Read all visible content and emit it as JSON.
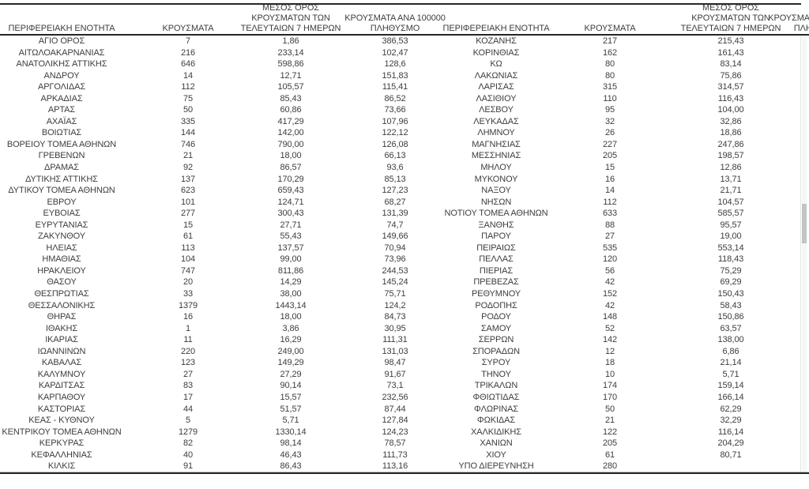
{
  "columns": {
    "region": "ΠΕΡΙΦΕΡΕΙΑΚΗ ΕΝΟΤΗΤΑ",
    "cases": "ΚΡΟΥΣΜΑΤΑ",
    "avg7_line1": "ΜΕΣΟΣ ΟΡΟΣ",
    "avg7_line2": "ΚΡΟΥΣΜΑΤΩΝ ΤΩΝ",
    "avg7_line3": "ΤΕΛΕΥΤΑΙΩΝ 7 ΗΜΕΡΩΝ",
    "per100k_line1": "ΚΡΟΥΣΜΑΤΑ ΑΝΑ 100000",
    "per100k_line2": "ΠΛΗΘΥΣΜΟ"
  },
  "colors": {
    "text": "#3d3d3d",
    "border": "#262626",
    "scrollbar_thumb": "#c4c4c4"
  },
  "left_table": {
    "rows": [
      {
        "region": "ΑΓΙΟ ΟΡΟΣ",
        "cases": "7",
        "avg7": "1,86",
        "per100k": "386,53"
      },
      {
        "region": "ΑΙΤΩΛΟΑΚΑΡΝΑΝΙΑΣ",
        "cases": "216",
        "avg7": "233,14",
        "per100k": "102,47"
      },
      {
        "region": "ΑΝΑΤΟΛΙΚΗΣ ΑΤΤΙΚΗΣ",
        "cases": "646",
        "avg7": "598,86",
        "per100k": "128,6"
      },
      {
        "region": "ΑΝΔΡΟΥ",
        "cases": "14",
        "avg7": "12,71",
        "per100k": "151,83"
      },
      {
        "region": "ΑΡΓΟΛΙΔΑΣ",
        "cases": "112",
        "avg7": "105,57",
        "per100k": "115,41"
      },
      {
        "region": "ΑΡΚΑΔΙΑΣ",
        "cases": "75",
        "avg7": "85,43",
        "per100k": "86,52"
      },
      {
        "region": "ΑΡΤΑΣ",
        "cases": "50",
        "avg7": "60,86",
        "per100k": "73,66"
      },
      {
        "region": "ΑΧΑΪΑΣ",
        "cases": "335",
        "avg7": "417,29",
        "per100k": "107,96"
      },
      {
        "region": "ΒΟΙΩΤΙΑΣ",
        "cases": "144",
        "avg7": "142,00",
        "per100k": "122,12"
      },
      {
        "region": "ΒΟΡΕΙΟΥ ΤΟΜΕΑ ΑΘΗΝΩΝ",
        "cases": "746",
        "avg7": "790,00",
        "per100k": "126,08"
      },
      {
        "region": "ΓΡΕΒΕΝΩΝ",
        "cases": "21",
        "avg7": "18,00",
        "per100k": "66,13"
      },
      {
        "region": "ΔΡΑΜΑΣ",
        "cases": "92",
        "avg7": "86,57",
        "per100k": "93,6"
      },
      {
        "region": "ΔΥΤΙΚΗΣ ΑΤΤΙΚΗΣ",
        "cases": "137",
        "avg7": "170,29",
        "per100k": "85,13"
      },
      {
        "region": "ΔΥΤΙΚΟΥ ΤΟΜΕΑ ΑΘΗΝΩΝ",
        "cases": "623",
        "avg7": "659,43",
        "per100k": "127,23"
      },
      {
        "region": "ΕΒΡΟΥ",
        "cases": "101",
        "avg7": "124,71",
        "per100k": "68,27"
      },
      {
        "region": "ΕΥΒΟΙΑΣ",
        "cases": "277",
        "avg7": "300,43",
        "per100k": "131,39"
      },
      {
        "region": "ΕΥΡΥΤΑΝΙΑΣ",
        "cases": "15",
        "avg7": "27,71",
        "per100k": "74,7"
      },
      {
        "region": "ΖΑΚΥΝΘΟΥ",
        "cases": "61",
        "avg7": "55,43",
        "per100k": "149,66"
      },
      {
        "region": "ΗΛΕΙΑΣ",
        "cases": "113",
        "avg7": "137,57",
        "per100k": "70,94"
      },
      {
        "region": "ΗΜΑΘΙΑΣ",
        "cases": "104",
        "avg7": "99,00",
        "per100k": "73,96"
      },
      {
        "region": "ΗΡΑΚΛΕΙΟΥ",
        "cases": "747",
        "avg7": "811,86",
        "per100k": "244,53"
      },
      {
        "region": "ΘΑΣΟΥ",
        "cases": "20",
        "avg7": "14,29",
        "per100k": "145,24"
      },
      {
        "region": "ΘΕΣΠΡΩΤΙΑΣ",
        "cases": "33",
        "avg7": "38,00",
        "per100k": "75,71"
      },
      {
        "region": "ΘΕΣΣΑΛΟΝΙΚΗΣ",
        "cases": "1379",
        "avg7": "1443,14",
        "per100k": "124,2"
      },
      {
        "region": "ΘΗΡΑΣ",
        "cases": "16",
        "avg7": "18,00",
        "per100k": "84,73"
      },
      {
        "region": "ΙΘΑΚΗΣ",
        "cases": "1",
        "avg7": "3,86",
        "per100k": "30,95"
      },
      {
        "region": "ΙΚΑΡΙΑΣ",
        "cases": "11",
        "avg7": "16,29",
        "per100k": "111,31"
      },
      {
        "region": "ΙΩΑΝΝΙΝΩΝ",
        "cases": "220",
        "avg7": "249,00",
        "per100k": "131,03"
      },
      {
        "region": "ΚΑΒΑΛΑΣ",
        "cases": "123",
        "avg7": "149,29",
        "per100k": "98,47"
      },
      {
        "region": "ΚΑΛΥΜΝΟΥ",
        "cases": "27",
        "avg7": "27,29",
        "per100k": "91,67"
      },
      {
        "region": "ΚΑΡΔΙΤΣΑΣ",
        "cases": "83",
        "avg7": "90,14",
        "per100k": "73,1"
      },
      {
        "region": "ΚΑΡΠΑΘΟΥ",
        "cases": "17",
        "avg7": "15,57",
        "per100k": "232,56"
      },
      {
        "region": "ΚΑΣΤΟΡΙΑΣ",
        "cases": "44",
        "avg7": "51,57",
        "per100k": "87,44"
      },
      {
        "region": "ΚΕΑΣ - ΚΥΘΝΟΥ",
        "cases": "5",
        "avg7": "5,71",
        "per100k": "127,84"
      },
      {
        "region": "ΚΕΝΤΡΙΚΟΥ ΤΟΜΕΑ ΑΘΗΝΩΝ",
        "cases": "1279",
        "avg7": "1330,14",
        "per100k": "124,23"
      },
      {
        "region": "ΚΕΡΚΥΡΑΣ",
        "cases": "82",
        "avg7": "98,14",
        "per100k": "78,57"
      },
      {
        "region": "ΚΕΦΑΛΛΗΝΙΑΣ",
        "cases": "40",
        "avg7": "46,43",
        "per100k": "111,73"
      },
      {
        "region": "ΚΙΛΚΙΣ",
        "cases": "91",
        "avg7": "86,43",
        "per100k": "113,16"
      }
    ]
  },
  "right_table": {
    "rows": [
      {
        "region": "ΚΟΖΑΝΗΣ",
        "cases": "217",
        "avg7": "215,43"
      },
      {
        "region": "ΚΟΡΙΝΘΙΑΣ",
        "cases": "162",
        "avg7": "161,43"
      },
      {
        "region": "ΚΩ",
        "cases": "80",
        "avg7": "83,14"
      },
      {
        "region": "ΛΑΚΩΝΙΑΣ",
        "cases": "80",
        "avg7": "75,86"
      },
      {
        "region": "ΛΑΡΙΣΑΣ",
        "cases": "315",
        "avg7": "314,57"
      },
      {
        "region": "ΛΑΣΙΘΙΟΥ",
        "cases": "110",
        "avg7": "116,43"
      },
      {
        "region": "ΛΕΣΒΟΥ",
        "cases": "95",
        "avg7": "104,00"
      },
      {
        "region": "ΛΕΥΚΑΔΑΣ",
        "cases": "32",
        "avg7": "32,86"
      },
      {
        "region": "ΛΗΜΝΟΥ",
        "cases": "26",
        "avg7": "18,86"
      },
      {
        "region": "ΜΑΓΝΗΣΙΑΣ",
        "cases": "227",
        "avg7": "247,86"
      },
      {
        "region": "ΜΕΣΣΗΝΙΑΣ",
        "cases": "205",
        "avg7": "198,57"
      },
      {
        "region": "ΜΗΛΟΥ",
        "cases": "15",
        "avg7": "12,86"
      },
      {
        "region": "ΜΥΚΟΝΟΥ",
        "cases": "16",
        "avg7": "13,71"
      },
      {
        "region": "ΝΑΞΟΥ",
        "cases": "14",
        "avg7": "21,71"
      },
      {
        "region": "ΝΗΣΩΝ",
        "cases": "112",
        "avg7": "104,57"
      },
      {
        "region": "ΝΟΤΙΟΥ ΤΟΜΕΑ ΑΘΗΝΩΝ",
        "cases": "633",
        "avg7": "585,57"
      },
      {
        "region": "ΞΑΝΘΗΣ",
        "cases": "88",
        "avg7": "95,57"
      },
      {
        "region": "ΠΑΡΟΥ",
        "cases": "27",
        "avg7": "19,00"
      },
      {
        "region": "ΠΕΙΡΑΙΩΣ",
        "cases": "535",
        "avg7": "553,14"
      },
      {
        "region": "ΠΕΛΛΑΣ",
        "cases": "120",
        "avg7": "118,43"
      },
      {
        "region": "ΠΙΕΡΙΑΣ",
        "cases": "56",
        "avg7": "75,29"
      },
      {
        "region": "ΠΡΕΒΕΖΑΣ",
        "cases": "42",
        "avg7": "69,29"
      },
      {
        "region": "ΡΕΘΥΜΝΟΥ",
        "cases": "152",
        "avg7": "150,43"
      },
      {
        "region": "ΡΟΔΟΠΗΣ",
        "cases": "42",
        "avg7": "58,43"
      },
      {
        "region": "ΡΟΔΟΥ",
        "cases": "148",
        "avg7": "150,86"
      },
      {
        "region": "ΣΑΜΟΥ",
        "cases": "52",
        "avg7": "63,57"
      },
      {
        "region": "ΣΕΡΡΩΝ",
        "cases": "142",
        "avg7": "138,00"
      },
      {
        "region": "ΣΠΟΡΑΔΩΝ",
        "cases": "12",
        "avg7": "6,86"
      },
      {
        "region": "ΣΥΡΟΥ",
        "cases": "18",
        "avg7": "21,14"
      },
      {
        "region": "ΤΗΝΟΥ",
        "cases": "10",
        "avg7": "5,71"
      },
      {
        "region": "ΤΡΙΚΑΛΩΝ",
        "cases": "174",
        "avg7": "159,14"
      },
      {
        "region": "ΦΘΙΩΤΙΔΑΣ",
        "cases": "170",
        "avg7": "166,14"
      },
      {
        "region": "ΦΛΩΡΙΝΑΣ",
        "cases": "50",
        "avg7": "62,29"
      },
      {
        "region": "ΦΩΚΙΔΑΣ",
        "cases": "21",
        "avg7": "32,29"
      },
      {
        "region": "ΧΑΛΚΙΔΙΚΗΣ",
        "cases": "122",
        "avg7": "116,14"
      },
      {
        "region": "ΧΑΝΙΩΝ",
        "cases": "205",
        "avg7": "204,29"
      },
      {
        "region": "ΧΙΟΥ",
        "cases": "61",
        "avg7": "80,71"
      },
      {
        "region": "ΥΠΟ ΔΙΕΡΕΥΝΗΣΗ",
        "cases": "280",
        "avg7": ""
      }
    ]
  }
}
